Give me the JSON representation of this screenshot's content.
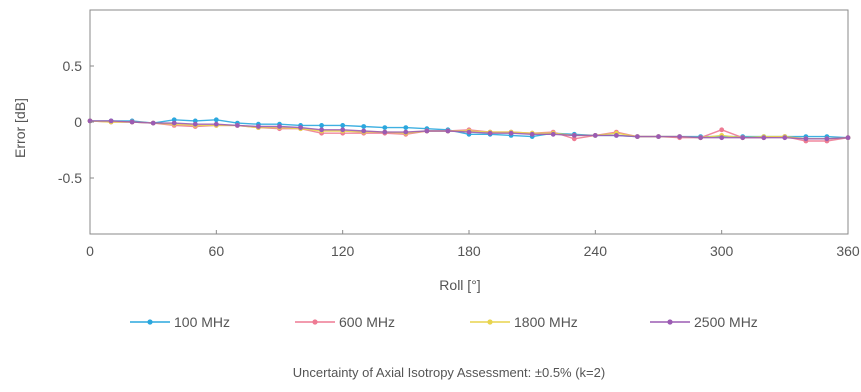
{
  "chart_data": {
    "type": "line",
    "xlabel": "Roll [°]",
    "ylabel": "Error [dB]",
    "xlim": [
      0,
      360
    ],
    "ylim": [
      -1,
      1
    ],
    "xticks": [
      0,
      60,
      120,
      180,
      240,
      300,
      360
    ],
    "yticks": [
      0.5,
      0,
      -0.5
    ],
    "ytick_labels": [
      "0.5",
      "0",
      "-0.5"
    ],
    "grid": false,
    "legend_position": "bottom",
    "x": [
      0,
      10,
      20,
      30,
      40,
      50,
      60,
      70,
      80,
      90,
      100,
      110,
      120,
      130,
      140,
      150,
      160,
      170,
      180,
      190,
      200,
      210,
      220,
      230,
      240,
      250,
      260,
      270,
      280,
      290,
      300,
      310,
      320,
      330,
      340,
      350,
      360
    ],
    "series": [
      {
        "name": "100 MHz",
        "color": "#2aa7de",
        "values": [
          0.01,
          0.01,
          0.01,
          -0.01,
          0.02,
          0.01,
          0.02,
          -0.01,
          -0.02,
          -0.02,
          -0.03,
          -0.03,
          -0.03,
          -0.04,
          -0.05,
          -0.05,
          -0.06,
          -0.07,
          -0.11,
          -0.11,
          -0.12,
          -0.13,
          -0.1,
          -0.11,
          -0.12,
          -0.12,
          -0.13,
          -0.13,
          -0.13,
          -0.13,
          -0.13,
          -0.13,
          -0.13,
          -0.13,
          -0.13,
          -0.13,
          -0.14
        ]
      },
      {
        "name": "600 MHz",
        "color": "#ee7a93",
        "values": [
          0.01,
          0.0,
          0.0,
          -0.01,
          -0.03,
          -0.04,
          -0.03,
          -0.03,
          -0.05,
          -0.06,
          -0.06,
          -0.1,
          -0.1,
          -0.1,
          -0.1,
          -0.11,
          -0.08,
          -0.08,
          -0.07,
          -0.09,
          -0.09,
          -0.1,
          -0.09,
          -0.15,
          -0.12,
          -0.09,
          -0.13,
          -0.13,
          -0.14,
          -0.14,
          -0.07,
          -0.14,
          -0.14,
          -0.13,
          -0.17,
          -0.17,
          -0.14
        ]
      },
      {
        "name": "1800 MHz",
        "color": "#e8d44d",
        "values": [
          0.01,
          0.0,
          0.0,
          -0.01,
          -0.02,
          -0.03,
          -0.03,
          -0.03,
          -0.05,
          -0.05,
          -0.06,
          -0.08,
          -0.08,
          -0.09,
          -0.09,
          -0.1,
          -0.08,
          -0.08,
          -0.08,
          -0.09,
          -0.09,
          -0.1,
          -0.1,
          -0.12,
          -0.12,
          -0.1,
          -0.13,
          -0.13,
          -0.13,
          -0.14,
          -0.12,
          -0.14,
          -0.13,
          -0.13,
          -0.15,
          -0.15,
          -0.14
        ]
      },
      {
        "name": "2500 MHz",
        "color": "#9b5bb3",
        "values": [
          0.01,
          0.01,
          0.0,
          -0.01,
          -0.01,
          -0.02,
          -0.02,
          -0.03,
          -0.04,
          -0.04,
          -0.05,
          -0.07,
          -0.07,
          -0.08,
          -0.09,
          -0.09,
          -0.08,
          -0.08,
          -0.09,
          -0.1,
          -0.1,
          -0.11,
          -0.11,
          -0.12,
          -0.12,
          -0.12,
          -0.13,
          -0.13,
          -0.13,
          -0.14,
          -0.14,
          -0.14,
          -0.14,
          -0.14,
          -0.15,
          -0.15,
          -0.14
        ]
      }
    ],
    "footnote": "Uncertainty of Axial Isotropy Assessment: ±0.5% (k=2)"
  }
}
